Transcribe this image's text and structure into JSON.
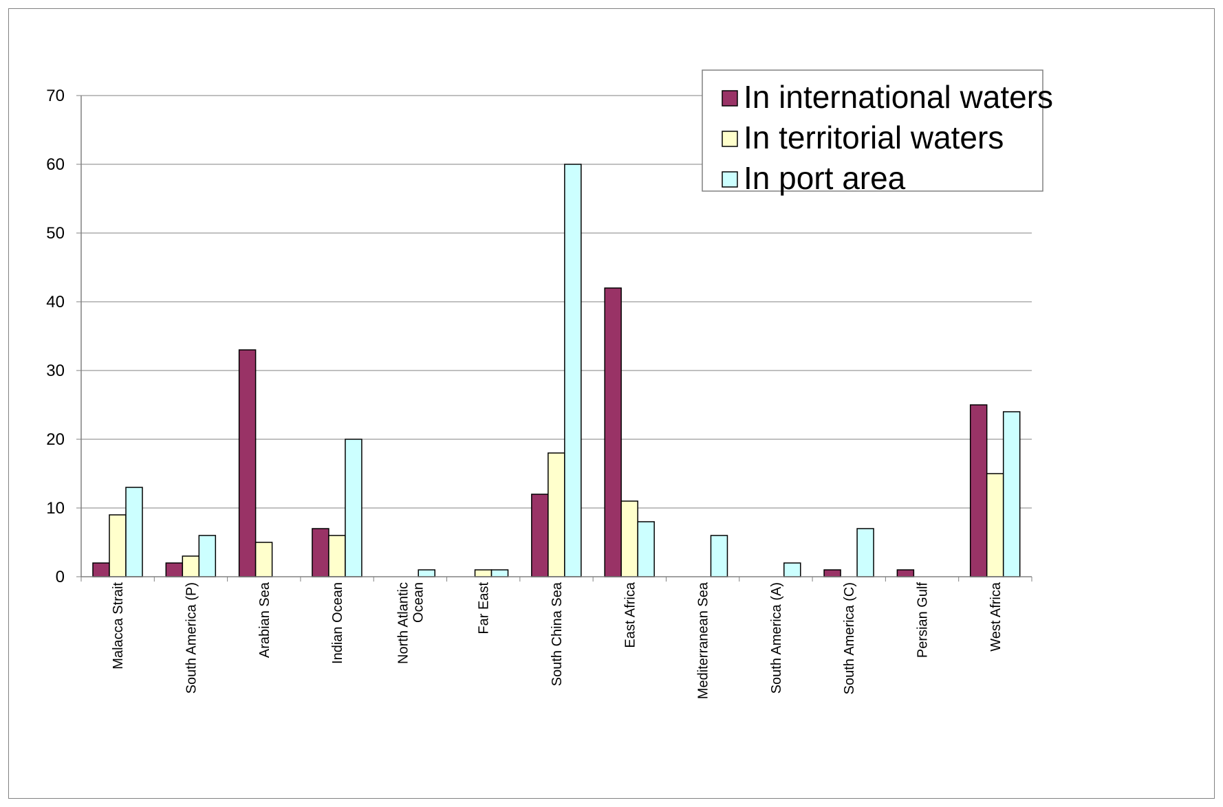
{
  "chart_data": {
    "type": "bar",
    "title": "",
    "xlabel": "",
    "ylabel": "",
    "ylim": [
      0,
      70
    ],
    "yticks": [
      0,
      10,
      20,
      30,
      40,
      50,
      60,
      70
    ],
    "grid": true,
    "legend_position": "top-right",
    "categories": [
      [
        "Malacca Strait"
      ],
      [
        "South America (P)"
      ],
      [
        "Arabian Sea"
      ],
      [
        "Indian Ocean"
      ],
      [
        "North Atlantic",
        "Ocean"
      ],
      [
        "Far East"
      ],
      [
        "South China Sea"
      ],
      [
        "East Africa"
      ],
      [
        "Mediterranean Sea"
      ],
      [
        "South America (A)"
      ],
      [
        "South America (C)"
      ],
      [
        "Persian Gulf"
      ],
      [
        "West Africa"
      ]
    ],
    "series": [
      {
        "name": "In international waters",
        "color": "#993366",
        "values": [
          2,
          2,
          33,
          7,
          0,
          0,
          12,
          42,
          0,
          0,
          1,
          1,
          25
        ]
      },
      {
        "name": "In territorial waters",
        "color": "#FFFFCC",
        "values": [
          9,
          3,
          5,
          6,
          0,
          1,
          18,
          11,
          0,
          0,
          0,
          0,
          15
        ]
      },
      {
        "name": "In port area",
        "color": "#CCFFFF",
        "values": [
          13,
          6,
          0,
          20,
          1,
          1,
          60,
          8,
          6,
          2,
          7,
          0,
          24
        ]
      }
    ]
  }
}
